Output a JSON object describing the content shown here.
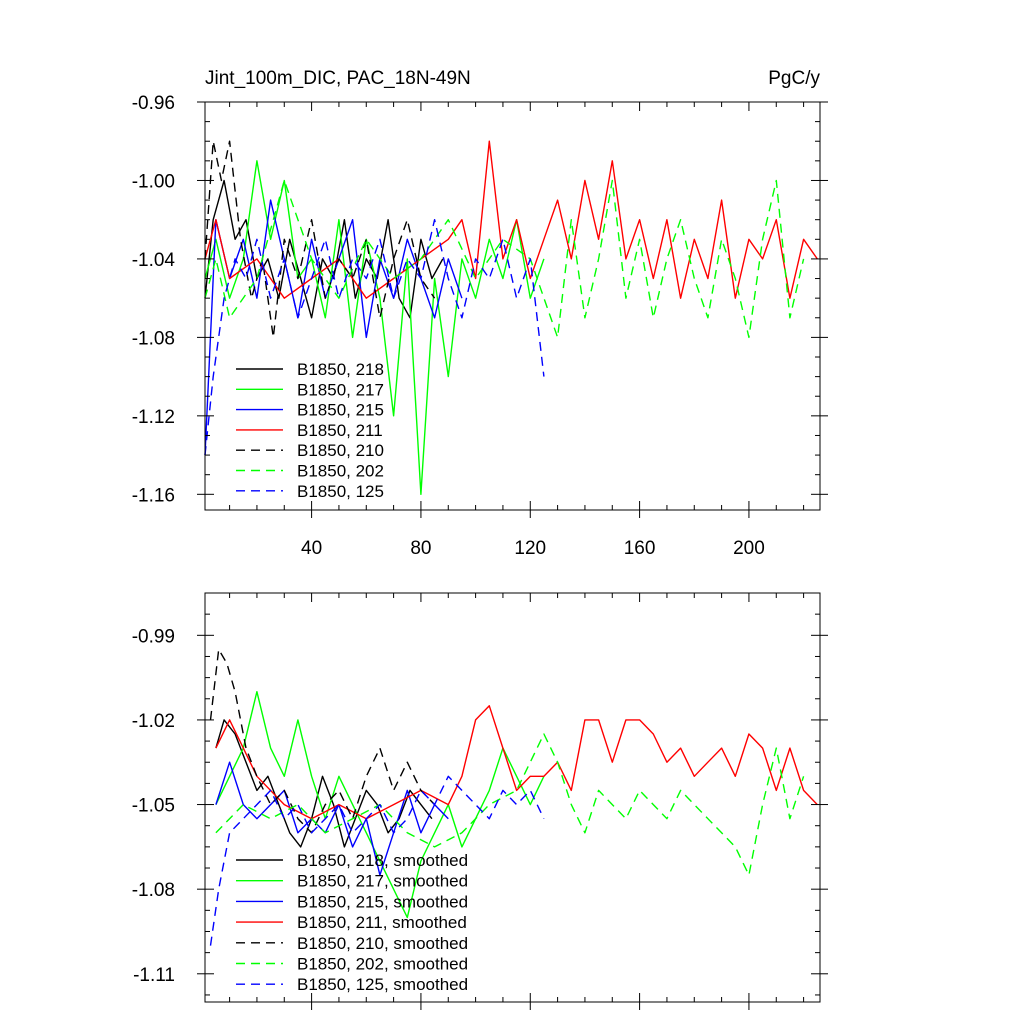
{
  "chart_data": [
    {
      "type": "line",
      "title": "Jint_100m_DIC, PAC_18N-49N",
      "units": "PgC/y",
      "xlim": [
        1,
        226
      ],
      "ylim": [
        -1.168,
        -0.96
      ],
      "xticks": [
        40,
        80,
        120,
        160,
        200
      ],
      "yticks": [
        -0.96,
        -1.0,
        -1.04,
        -1.08,
        -1.12,
        -1.16
      ],
      "ytick_labels": [
        "-0.96",
        "-1.00",
        "-1.04",
        "-1.08",
        "-1.12",
        "-1.16"
      ],
      "legend_position": "bottom-left",
      "series": [
        {
          "name": "B1850, 218",
          "color": "#000000",
          "dash": "solid",
          "x": [
            1,
            4,
            8,
            12,
            16,
            20,
            24,
            28,
            32,
            36,
            40,
            44,
            48,
            52,
            56,
            60,
            64,
            68,
            72,
            76,
            80,
            84,
            88
          ],
          "y": [
            -1.06,
            -1.02,
            -1.0,
            -1.03,
            -1.02,
            -1.05,
            -1.04,
            -1.06,
            -1.03,
            -1.05,
            -1.07,
            -1.04,
            -1.05,
            -1.02,
            -1.06,
            -1.04,
            -1.05,
            -1.02,
            -1.06,
            -1.07,
            -1.03,
            -1.05,
            -1.04
          ]
        },
        {
          "name": "B1850, 217",
          "color": "#00ff00",
          "dash": "solid",
          "x": [
            1,
            5,
            10,
            15,
            20,
            25,
            30,
            35,
            40,
            45,
            50,
            55,
            60,
            65,
            70,
            75,
            80,
            85,
            90,
            95,
            100,
            105,
            110,
            115,
            120,
            125
          ],
          "y": [
            -1.05,
            -1.03,
            -1.06,
            -1.04,
            -0.99,
            -1.03,
            -1.0,
            -1.05,
            -1.04,
            -1.07,
            -1.02,
            -1.08,
            -1.03,
            -1.06,
            -1.12,
            -1.04,
            -1.16,
            -1.05,
            -1.1,
            -1.04,
            -1.06,
            -1.03,
            -1.05,
            -1.02,
            -1.06,
            -1.04
          ]
        },
        {
          "name": "B1850, 215",
          "color": "#0000ff",
          "dash": "solid",
          "x": [
            1,
            5,
            10,
            15,
            20,
            25,
            30,
            35,
            40,
            45,
            50,
            55,
            60,
            65,
            70,
            75,
            80,
            85,
            90,
            95
          ],
          "y": [
            -1.14,
            -1.02,
            -1.05,
            -1.03,
            -1.06,
            -1.01,
            -1.04,
            -1.07,
            -1.03,
            -1.06,
            -1.04,
            -1.02,
            -1.08,
            -1.04,
            -1.06,
            -1.03,
            -1.05,
            -1.07,
            -1.04,
            -1.06
          ]
        },
        {
          "name": "B1850, 211",
          "color": "#ff0000",
          "dash": "solid",
          "x": [
            1,
            5,
            10,
            20,
            30,
            40,
            50,
            60,
            70,
            80,
            90,
            95,
            100,
            105,
            110,
            115,
            120,
            125,
            130,
            135,
            140,
            145,
            150,
            155,
            160,
            165,
            170,
            175,
            180,
            185,
            190,
            195,
            200,
            205,
            210,
            215,
            220,
            225
          ],
          "y": [
            -1.04,
            -1.02,
            -1.05,
            -1.04,
            -1.06,
            -1.05,
            -1.04,
            -1.06,
            -1.05,
            -1.04,
            -1.03,
            -1.02,
            -1.05,
            -0.98,
            -1.04,
            -1.02,
            -1.05,
            -1.03,
            -1.01,
            -1.04,
            -1.0,
            -1.03,
            -0.99,
            -1.04,
            -1.02,
            -1.05,
            -1.02,
            -1.06,
            -1.03,
            -1.05,
            -1.01,
            -1.06,
            -1.03,
            -1.04,
            -1.02,
            -1.06,
            -1.03,
            -1.04
          ]
        },
        {
          "name": "B1850, 210",
          "color": "#000000",
          "dash": "dashed",
          "x": [
            1,
            4,
            7,
            10,
            14,
            18,
            22,
            26,
            30,
            35,
            40,
            45,
            50,
            55,
            60,
            65,
            70,
            75,
            80,
            85
          ],
          "y": [
            -1.04,
            -0.98,
            -1.0,
            -0.98,
            -1.03,
            -1.06,
            -1.04,
            -1.08,
            -1.03,
            -1.05,
            -1.02,
            -1.06,
            -1.04,
            -1.05,
            -1.03,
            -1.07,
            -1.04,
            -1.02,
            -1.05,
            -1.06
          ]
        },
        {
          "name": "B1850, 202",
          "color": "#00ff00",
          "dash": "dashed",
          "x": [
            1,
            5,
            10,
            20,
            30,
            40,
            50,
            60,
            70,
            80,
            90,
            100,
            110,
            120,
            130,
            135,
            140,
            145,
            150,
            155,
            160,
            165,
            170,
            175,
            180,
            185,
            190,
            195,
            200,
            205,
            210,
            215,
            220
          ],
          "y": [
            -1.06,
            -1.04,
            -1.07,
            -1.05,
            -1.0,
            -1.04,
            -1.06,
            -1.03,
            -1.05,
            -1.04,
            -1.02,
            -1.05,
            -1.03,
            -1.04,
            -1.08,
            -1.02,
            -1.07,
            -1.04,
            -1.0,
            -1.06,
            -1.03,
            -1.07,
            -1.04,
            -1.02,
            -1.05,
            -1.07,
            -1.03,
            -1.05,
            -1.08,
            -1.03,
            -1.0,
            -1.07,
            -1.04
          ]
        },
        {
          "name": "B1850, 125",
          "color": "#0000ff",
          "dash": "dashed",
          "x": [
            1,
            4,
            8,
            12,
            16,
            20,
            25,
            30,
            35,
            40,
            45,
            50,
            55,
            60,
            65,
            70,
            75,
            80,
            85,
            90,
            95,
            100,
            105,
            110,
            115,
            120,
            125
          ],
          "y": [
            -1.14,
            -1.1,
            -1.06,
            -1.04,
            -1.05,
            -1.03,
            -1.06,
            -1.04,
            -1.07,
            -1.05,
            -1.03,
            -1.06,
            -1.04,
            -1.05,
            -1.03,
            -1.06,
            -1.04,
            -1.05,
            -1.02,
            -1.05,
            -1.07,
            -1.04,
            -1.05,
            -1.03,
            -1.06,
            -1.04,
            -1.1
          ]
        }
      ]
    },
    {
      "type": "line",
      "xlim": [
        1,
        226
      ],
      "ylim": [
        -1.12,
        -0.975
      ],
      "xticks": [
        40,
        80,
        120,
        160,
        200
      ],
      "yticks": [
        -0.99,
        -1.02,
        -1.05,
        -1.08,
        -1.11
      ],
      "ytick_labels": [
        "-0.99",
        "-1.02",
        "-1.05",
        "-1.08",
        "-1.11"
      ],
      "legend_position": "bottom-left",
      "series": [
        {
          "name": "B1850, 218, smoothed",
          "color": "#000000",
          "dash": "solid",
          "x": [
            5,
            8,
            12,
            16,
            20,
            24,
            28,
            32,
            36,
            40,
            44,
            48,
            52,
            56,
            60,
            64,
            68,
            72,
            76,
            80,
            84
          ],
          "y": [
            -1.03,
            -1.02,
            -1.025,
            -1.035,
            -1.045,
            -1.04,
            -1.05,
            -1.06,
            -1.065,
            -1.055,
            -1.04,
            -1.05,
            -1.065,
            -1.055,
            -1.045,
            -1.05,
            -1.06,
            -1.055,
            -1.045,
            -1.05,
            -1.055
          ]
        },
        {
          "name": "B1850, 217, smoothed",
          "color": "#00ff00",
          "dash": "solid",
          "x": [
            5,
            10,
            15,
            20,
            25,
            30,
            35,
            40,
            45,
            50,
            55,
            60,
            65,
            70,
            75,
            80,
            85,
            90,
            95,
            100,
            105,
            110,
            115,
            120,
            125
          ],
          "y": [
            -1.05,
            -1.04,
            -1.03,
            -1.01,
            -1.03,
            -1.04,
            -1.02,
            -1.04,
            -1.055,
            -1.04,
            -1.05,
            -1.06,
            -1.07,
            -1.08,
            -1.09,
            -1.07,
            -1.06,
            -1.05,
            -1.065,
            -1.055,
            -1.045,
            -1.03,
            -1.04,
            -1.05,
            -1.04
          ]
        },
        {
          "name": "B1850, 215, smoothed",
          "color": "#0000ff",
          "dash": "solid",
          "x": [
            5,
            10,
            15,
            20,
            25,
            30,
            35,
            40,
            45,
            50,
            55,
            60,
            65,
            70,
            75,
            80,
            85,
            90
          ],
          "y": [
            -1.05,
            -1.035,
            -1.05,
            -1.055,
            -1.05,
            -1.045,
            -1.06,
            -1.055,
            -1.06,
            -1.05,
            -1.065,
            -1.055,
            -1.075,
            -1.06,
            -1.045,
            -1.06,
            -1.05,
            -1.055
          ]
        },
        {
          "name": "B1850, 211, smoothed",
          "color": "#ff0000",
          "dash": "solid",
          "x": [
            5,
            10,
            15,
            20,
            30,
            40,
            50,
            60,
            70,
            80,
            90,
            95,
            100,
            105,
            110,
            115,
            120,
            125,
            130,
            135,
            140,
            145,
            150,
            155,
            160,
            165,
            170,
            175,
            180,
            185,
            190,
            195,
            200,
            205,
            210,
            215,
            220,
            225
          ],
          "y": [
            -1.03,
            -1.02,
            -1.03,
            -1.04,
            -1.05,
            -1.055,
            -1.05,
            -1.055,
            -1.05,
            -1.045,
            -1.05,
            -1.04,
            -1.02,
            -1.015,
            -1.03,
            -1.045,
            -1.04,
            -1.04,
            -1.035,
            -1.045,
            -1.02,
            -1.02,
            -1.035,
            -1.02,
            -1.02,
            -1.025,
            -1.035,
            -1.03,
            -1.04,
            -1.035,
            -1.03,
            -1.04,
            -1.025,
            -1.03,
            -1.045,
            -1.03,
            -1.045,
            -1.05
          ]
        },
        {
          "name": "B1850, 210, smoothed",
          "color": "#000000",
          "dash": "dashed",
          "x": [
            3,
            6,
            9,
            12,
            16,
            20,
            25,
            30,
            35,
            40,
            45,
            50,
            55,
            60,
            65,
            70,
            75,
            80,
            85
          ],
          "y": [
            -1.02,
            -0.995,
            -1.0,
            -1.01,
            -1.03,
            -1.04,
            -1.05,
            -1.045,
            -1.055,
            -1.06,
            -1.05,
            -1.045,
            -1.055,
            -1.04,
            -1.03,
            -1.045,
            -1.035,
            -1.045,
            -1.05
          ]
        },
        {
          "name": "B1850, 202, smoothed",
          "color": "#00ff00",
          "dash": "dashed",
          "x": [
            5,
            15,
            25,
            35,
            45,
            55,
            65,
            75,
            85,
            95,
            105,
            115,
            125,
            130,
            135,
            140,
            145,
            150,
            155,
            160,
            165,
            170,
            175,
            180,
            185,
            190,
            195,
            200,
            205,
            210,
            215,
            220
          ],
          "y": [
            -1.06,
            -1.05,
            -1.055,
            -1.05,
            -1.06,
            -1.055,
            -1.05,
            -1.06,
            -1.065,
            -1.06,
            -1.05,
            -1.045,
            -1.025,
            -1.035,
            -1.05,
            -1.06,
            -1.045,
            -1.05,
            -1.055,
            -1.045,
            -1.05,
            -1.055,
            -1.045,
            -1.05,
            -1.055,
            -1.06,
            -1.065,
            -1.075,
            -1.05,
            -1.03,
            -1.055,
            -1.04
          ]
        },
        {
          "name": "B1850, 125, smoothed",
          "color": "#0000ff",
          "dash": "dashed",
          "x": [
            3,
            6,
            10,
            15,
            20,
            25,
            30,
            35,
            40,
            45,
            50,
            55,
            60,
            65,
            70,
            75,
            80,
            85,
            90,
            95,
            100,
            105,
            110,
            115,
            120,
            125
          ],
          "y": [
            -1.1,
            -1.08,
            -1.06,
            -1.055,
            -1.05,
            -1.045,
            -1.055,
            -1.05,
            -1.06,
            -1.055,
            -1.05,
            -1.06,
            -1.055,
            -1.05,
            -1.06,
            -1.055,
            -1.045,
            -1.05,
            -1.04,
            -1.045,
            -1.05,
            -1.055,
            -1.045,
            -1.05,
            -1.045,
            -1.055
          ]
        }
      ]
    }
  ]
}
